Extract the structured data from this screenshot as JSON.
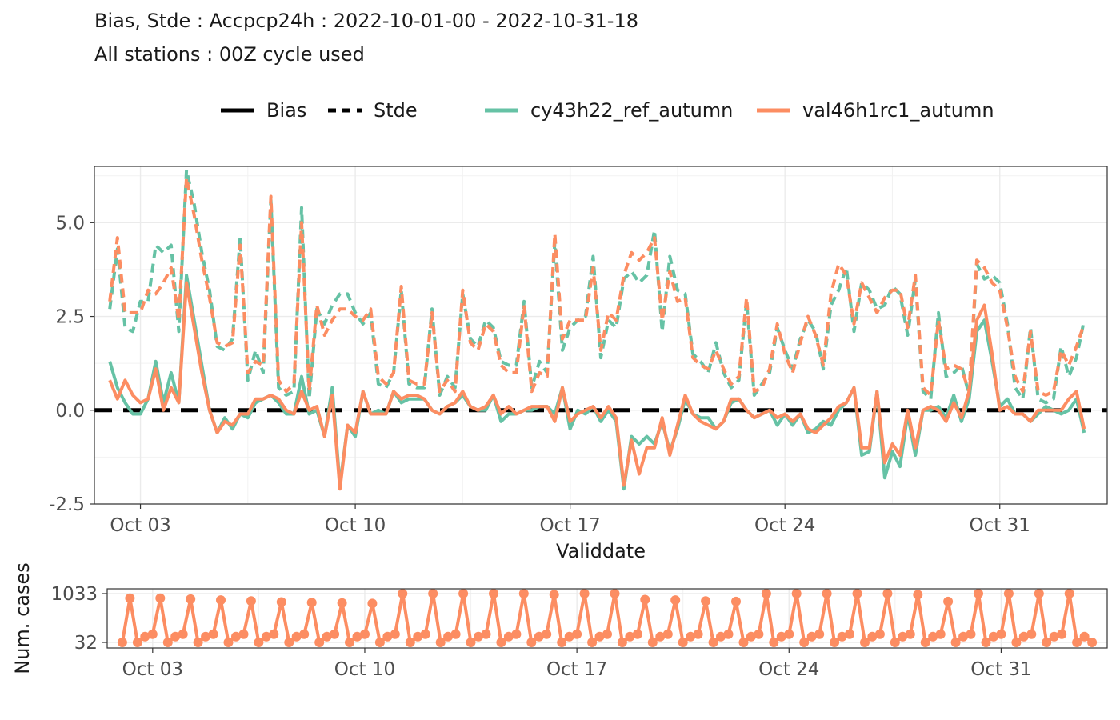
{
  "chart_data": [
    {
      "type": "line",
      "title": "Bias, Stde : Accpcp24h : 2022-10-01-00 - 2022-10-31-18",
      "subtitle": "All stations : 00Z cycle used",
      "xlabel": "Validdate",
      "ylabel": "",
      "ylim": [
        -2.5,
        6.5
      ],
      "xlim": [
        "2022-10-01T12:00",
        "2022-11-03T12:00"
      ],
      "x_tick_labels": [
        "Oct 03",
        "Oct 10",
        "Oct 17",
        "Oct 24",
        "Oct 31"
      ],
      "y_tick_labels": [
        "-2.5",
        "0.0",
        "2.5",
        "5.0"
      ],
      "grid": true,
      "legend_position": "top",
      "legend": {
        "linetype_entries": [
          "Bias",
          "Stde"
        ],
        "series_entries": [
          "cy43h22_ref_autumn",
          "val46h1rc1_autumn"
        ]
      },
      "reference_line": {
        "y": 0,
        "style": "dashed",
        "color": "#000000"
      },
      "time_start": "2022-10-02T00:00",
      "time_step_hours": 6,
      "series": [
        {
          "name": "cy43h22_ref_autumn",
          "metric": "Stde",
          "color": "#66c2a5",
          "values": [
            2.7,
            4.3,
            2.2,
            2.1,
            2.9,
            2.9,
            4.4,
            4.2,
            4.4,
            2.1,
            6.4,
            5.5,
            4.2,
            3.2,
            1.7,
            1.6,
            1.9,
            4.6,
            0.8,
            1.6,
            1.0,
            5.6,
            0.6,
            0.4,
            0.5,
            5.4,
            0.3,
            2.7,
            2.3,
            2.8,
            3.1,
            3.1,
            2.6,
            2.3,
            2.6,
            0.7,
            0.6,
            1.0,
            3.2,
            0.7,
            0.6,
            0.6,
            2.7,
            0.4,
            0.9,
            0.6,
            3.1,
            1.9,
            1.7,
            2.4,
            2.2,
            1.3,
            1.2,
            1.2,
            2.9,
            0.6,
            1.3,
            1.0,
            4.5,
            1.6,
            2.2,
            2.4,
            2.5,
            4.1,
            1.4,
            2.4,
            2.2,
            3.5,
            3.7,
            3.4,
            3.6,
            4.8,
            2.1,
            4.1,
            3.2,
            3.1,
            1.5,
            1.3,
            1.0,
            1.8,
            1.0,
            0.6,
            0.8,
            2.9,
            0.4,
            0.7,
            1.0,
            2.2,
            1.6,
            1.1,
            1.9,
            2.4,
            2.1,
            1.1,
            2.8,
            3.2,
            3.8,
            2.1,
            3.4,
            3.2,
            2.7,
            2.8,
            3.3,
            3.1,
            2.0,
            3.5,
            0.5,
            0.3,
            2.6,
            0.9,
            1.0,
            1.2,
            0.4,
            3.9,
            3.5,
            3.6,
            3.4,
            2.3,
            0.6,
            0.3,
            2.2,
            0.3,
            0.2,
            0.3,
            1.7,
            0.9,
            1.4,
            2.4
          ]
        },
        {
          "name": "val46h1rc1_autumn",
          "metric": "Stde",
          "color": "#fc8d62",
          "values": [
            2.9,
            4.6,
            2.6,
            2.6,
            2.6,
            3.2,
            3.1,
            3.4,
            3.8,
            2.4,
            6.2,
            5.2,
            4.0,
            3.0,
            1.8,
            1.7,
            1.8,
            4.4,
            1.0,
            1.3,
            1.2,
            5.7,
            0.8,
            0.5,
            0.7,
            5.0,
            0.5,
            2.8,
            2.0,
            2.4,
            2.7,
            2.7,
            2.5,
            2.4,
            2.7,
            0.9,
            0.7,
            1.0,
            3.3,
            0.8,
            0.7,
            0.7,
            2.6,
            0.5,
            0.8,
            0.5,
            3.2,
            1.8,
            1.6,
            2.3,
            2.1,
            1.2,
            1.0,
            1.0,
            2.8,
            0.5,
            1.0,
            0.9,
            4.7,
            1.9,
            2.4,
            2.4,
            2.4,
            3.8,
            1.6,
            2.6,
            2.4,
            3.6,
            4.2,
            4.0,
            4.2,
            4.6,
            2.4,
            3.7,
            2.9,
            3.0,
            1.4,
            1.2,
            1.1,
            1.6,
            1.1,
            0.7,
            0.9,
            3.0,
            0.5,
            0.6,
            1.1,
            2.3,
            1.5,
            1.0,
            1.8,
            2.5,
            2.0,
            1.2,
            3.1,
            3.9,
            3.6,
            2.3,
            3.4,
            3.0,
            2.6,
            3.0,
            3.2,
            3.2,
            2.2,
            3.6,
            0.6,
            0.4,
            2.4,
            1.1,
            1.2,
            1.1,
            0.5,
            4.0,
            3.8,
            3.4,
            3.2,
            2.2,
            0.9,
            0.5,
            2.1,
            0.5,
            0.4,
            0.5,
            1.6,
            1.2,
            1.7,
            2.3
          ]
        },
        {
          "name": "cy43h22_ref_autumn",
          "metric": "Bias",
          "color": "#66c2a5",
          "values": [
            1.3,
            0.6,
            0.2,
            -0.1,
            -0.1,
            0.3,
            1.3,
            0.2,
            1.0,
            0.2,
            3.6,
            2.4,
            1.2,
            0.0,
            -0.6,
            -0.2,
            -0.5,
            -0.1,
            -0.2,
            0.2,
            0.3,
            0.4,
            0.2,
            -0.1,
            -0.1,
            0.9,
            -0.1,
            0.0,
            -0.7,
            0.6,
            -2.0,
            -0.4,
            -0.7,
            0.5,
            -0.1,
            0.0,
            -0.1,
            0.5,
            0.2,
            0.3,
            0.3,
            0.3,
            0.0,
            -0.1,
            0.1,
            0.2,
            0.4,
            0.1,
            0.0,
            0.0,
            0.4,
            -0.3,
            -0.1,
            -0.1,
            0.0,
            0.0,
            0.1,
            0.1,
            -0.1,
            0.6,
            -0.5,
            0.0,
            -0.1,
            0.1,
            -0.3,
            0.0,
            -0.3,
            -2.1,
            -0.7,
            -0.9,
            -0.7,
            -0.9,
            -0.3,
            -1.1,
            -0.5,
            0.3,
            -0.1,
            -0.2,
            -0.2,
            -0.5,
            -0.3,
            0.2,
            0.3,
            0.0,
            -0.2,
            -0.1,
            0.0,
            -0.4,
            -0.1,
            -0.4,
            -0.1,
            -0.6,
            -0.5,
            -0.3,
            -0.4,
            0.0,
            0.2,
            0.6,
            -1.2,
            -1.1,
            0.5,
            -1.8,
            -1.1,
            -1.5,
            -0.1,
            -1.2,
            0.0,
            0.0,
            0.1,
            -0.2,
            0.4,
            -0.3,
            0.3,
            2.1,
            2.4,
            1.3,
            0.1,
            0.3,
            -0.1,
            -0.1,
            -0.3,
            -0.1,
            0.1,
            0.0,
            -0.1,
            0.0,
            0.3,
            -0.6
          ]
        },
        {
          "name": "val46h1rc1_autumn",
          "metric": "Bias",
          "color": "#fc8d62",
          "values": [
            0.8,
            0.3,
            0.8,
            0.4,
            0.2,
            0.3,
            1.1,
            0.0,
            0.6,
            0.2,
            3.4,
            2.2,
            1.0,
            0.0,
            -0.6,
            -0.3,
            -0.4,
            -0.1,
            -0.1,
            0.3,
            0.3,
            0.4,
            0.3,
            0.0,
            -0.1,
            0.5,
            0.0,
            0.1,
            -0.7,
            0.4,
            -2.1,
            -0.4,
            -0.6,
            0.5,
            -0.1,
            -0.1,
            -0.1,
            0.5,
            0.3,
            0.4,
            0.4,
            0.3,
            0.0,
            -0.1,
            0.1,
            0.2,
            0.5,
            0.1,
            0.0,
            0.1,
            0.4,
            -0.1,
            0.1,
            -0.1,
            0.0,
            0.1,
            0.1,
            0.1,
            -0.3,
            0.6,
            -0.3,
            -0.1,
            0.0,
            0.1,
            -0.2,
            0.1,
            -0.2,
            -2.0,
            -0.8,
            -1.7,
            -1.0,
            -1.0,
            -0.2,
            -1.2,
            -0.4,
            0.4,
            -0.1,
            -0.3,
            -0.4,
            -0.5,
            -0.3,
            0.3,
            0.3,
            0.0,
            -0.2,
            -0.1,
            0.0,
            -0.2,
            -0.1,
            -0.3,
            -0.1,
            -0.5,
            -0.6,
            -0.4,
            -0.2,
            0.1,
            0.2,
            0.6,
            -1.0,
            -1.0,
            0.5,
            -1.4,
            -0.9,
            -1.2,
            0.0,
            -1.0,
            0.0,
            0.1,
            0.0,
            -0.3,
            0.2,
            -0.2,
            0.5,
            2.4,
            2.8,
            1.5,
            0.0,
            0.1,
            -0.1,
            -0.1,
            -0.3,
            0.0,
            0.0,
            0.0,
            0.0,
            0.3,
            0.5,
            -0.5
          ]
        }
      ]
    },
    {
      "type": "line",
      "title": "",
      "xlabel": "",
      "ylabel": "Num. cases",
      "ylim": [
        32,
        1033
      ],
      "y_tick_labels": [
        "32",
        "1033"
      ],
      "x_tick_labels": [
        "Oct 03",
        "Oct 10",
        "Oct 17",
        "Oct 24",
        "Oct 31"
      ],
      "grid": true,
      "markers": true,
      "time_start": "2022-10-02T00:00",
      "time_step_hours": 6,
      "series": [
        {
          "name": "val46h1rc1_autumn",
          "color": "#fc8d62",
          "values": [
            32,
            940,
            32,
            150,
            200,
            940,
            32,
            150,
            200,
            920,
            32,
            150,
            200,
            900,
            32,
            150,
            200,
            880,
            32,
            150,
            200,
            860,
            32,
            150,
            200,
            850,
            32,
            150,
            200,
            840,
            32,
            150,
            200,
            830,
            32,
            150,
            200,
            1033,
            32,
            150,
            200,
            1033,
            32,
            150,
            200,
            1033,
            32,
            150,
            200,
            1033,
            32,
            150,
            200,
            1033,
            32,
            150,
            200,
            1010,
            32,
            150,
            200,
            1033,
            32,
            150,
            200,
            1033,
            32,
            150,
            200,
            910,
            32,
            150,
            200,
            900,
            32,
            150,
            200,
            880,
            32,
            150,
            200,
            870,
            32,
            150,
            200,
            1033,
            32,
            150,
            200,
            1033,
            32,
            150,
            200,
            1033,
            32,
            150,
            200,
            1033,
            32,
            150,
            200,
            1033,
            32,
            150,
            200,
            1010,
            32,
            150,
            200,
            870,
            32,
            150,
            200,
            1033,
            32,
            150,
            200,
            1033,
            32,
            150,
            200,
            1033,
            32,
            150,
            200,
            1033,
            32,
            150,
            32
          ]
        }
      ]
    }
  ]
}
